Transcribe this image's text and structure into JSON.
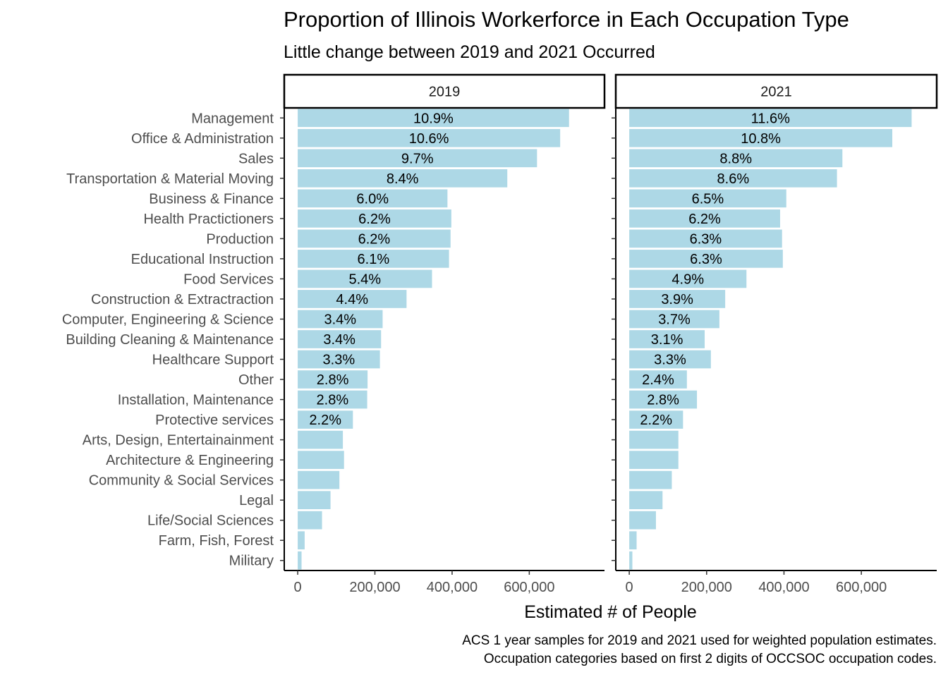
{
  "title": "Proportion of Illinois Workerforce in Each Occupation Type",
  "subtitle": "Little change between 2019 and 2021 Occurred",
  "caption": {
    "line1": "ACS 1 year samples for 2019 and 2021 used for weighted population estimates.",
    "line2": "Occupation categories based on first 2 digits of OCCSOC occupation codes."
  },
  "colors": {
    "bar": "#add8e6",
    "axis": "#000000",
    "tick_text": "#4d4d4d"
  },
  "chart_data": {
    "type": "bar",
    "orientation": "horizontal",
    "xlabel": "Estimated # of People",
    "ylabel": "",
    "xlim": [
      0,
      760000
    ],
    "x_ticks": [
      0,
      200000,
      400000,
      600000
    ],
    "x_tick_labels": [
      "0",
      "200,000",
      "400,000",
      "600,000"
    ],
    "grid": false,
    "categories": [
      "Management",
      "Office & Administration",
      "Sales",
      "Transportation & Material Moving",
      "Business & Finance",
      "Health Practictioners",
      "Production",
      "Educational Instruction",
      "Food Services",
      "Construction & Extractraction",
      "Computer, Engineering & Science",
      "Building Cleaning & Maintenance",
      "Healthcare Support",
      "Other",
      "Installation, Maintenance",
      "Protective services",
      "Arts, Design, Entertainainment",
      "Architecture & Engineering",
      "Community & Social Services",
      "Legal",
      "Life/Social Sciences",
      "Farm, Fish, Forest",
      "Military"
    ],
    "facets": [
      {
        "name": "2019",
        "values": [
          703000,
          680000,
          620000,
          543000,
          388000,
          398000,
          396000,
          392000,
          348000,
          282000,
          220000,
          216000,
          213000,
          181000,
          180000,
          143000,
          117000,
          120000,
          108000,
          85000,
          63000,
          18000,
          10000
        ],
        "labels": [
          "10.9%",
          "10.6%",
          "9.7%",
          "8.4%",
          "6.0%",
          "6.2%",
          "6.2%",
          "6.1%",
          "5.4%",
          "4.4%",
          "3.4%",
          "3.4%",
          "3.3%",
          "2.8%",
          "2.8%",
          "2.2%",
          "",
          "",
          "",
          "",
          "",
          "",
          ""
        ]
      },
      {
        "name": "2021",
        "values": [
          730000,
          680000,
          551000,
          537000,
          406000,
          390000,
          395000,
          397000,
          303000,
          248000,
          233000,
          195000,
          211000,
          149000,
          175000,
          139000,
          127000,
          127000,
          110000,
          86000,
          69000,
          19000,
          8000
        ],
        "labels": [
          "11.6%",
          "10.8%",
          "8.8%",
          "8.6%",
          "6.5%",
          "6.2%",
          "6.3%",
          "6.3%",
          "4.9%",
          "3.9%",
          "3.7%",
          "3.1%",
          "3.3%",
          "2.4%",
          "2.8%",
          "2.2%",
          "",
          "",
          "",
          "",
          "",
          "",
          ""
        ]
      }
    ]
  }
}
